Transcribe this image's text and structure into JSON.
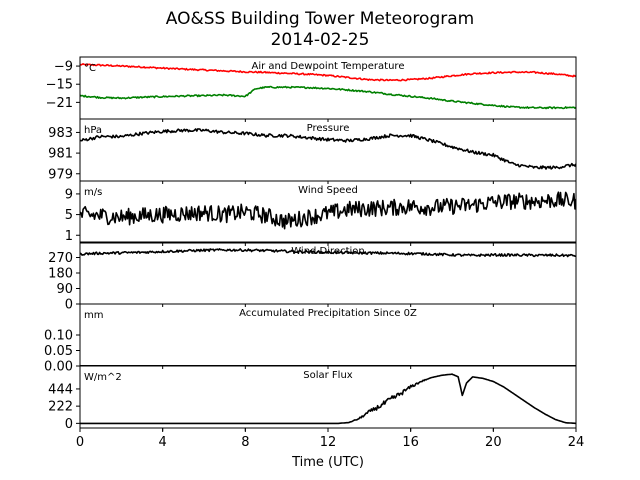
{
  "figure": {
    "title_line1": "AO&SS Building Tower Meteorogram",
    "title_line2": "2014-02-25",
    "xlabel": "Time (UTC)"
  },
  "chart_data": [
    {
      "type": "line",
      "title": "Air and Dewpoint Temperature",
      "unit": "°C",
      "xlim": [
        0,
        24
      ],
      "ylim": [
        -26.5,
        -6
      ],
      "yticks": [
        -9,
        -15,
        -21
      ],
      "yticklabels": [
        "−9",
        "−15",
        "−21"
      ],
      "noise": 0.25,
      "series": [
        {
          "color": "#ff0000",
          "x": [
            0,
            1,
            2,
            3,
            4,
            5,
            6,
            7,
            8,
            9,
            10,
            11,
            12,
            13,
            14,
            15,
            16,
            17,
            18,
            19,
            20,
            21,
            22,
            23,
            24
          ],
          "values": [
            -8.5,
            -8.7,
            -9.0,
            -9.3,
            -9.7,
            -10.0,
            -10.3,
            -10.6,
            -10.9,
            -11.1,
            -11.4,
            -11.7,
            -12.1,
            -12.8,
            -13.5,
            -13.7,
            -13.5,
            -13.0,
            -12.2,
            -11.5,
            -11.2,
            -11.0,
            -11.1,
            -11.6,
            -12.4
          ]
        },
        {
          "color": "#008000",
          "x": [
            0,
            1,
            2,
            3,
            4,
            5,
            6,
            7,
            8,
            8.5,
            9,
            10,
            11,
            12,
            13,
            14,
            15,
            16,
            17,
            18,
            19,
            20,
            21,
            22,
            23,
            24
          ],
          "values": [
            -18.8,
            -19.4,
            -19.6,
            -19.3,
            -19.1,
            -18.9,
            -18.8,
            -18.6,
            -19.0,
            -16.5,
            -16.0,
            -16.0,
            -16.1,
            -16.4,
            -16.9,
            -17.5,
            -18.3,
            -19.0,
            -19.7,
            -20.6,
            -21.3,
            -22.0,
            -22.6,
            -22.8,
            -22.8,
            -22.7
          ]
        }
      ]
    },
    {
      "type": "line",
      "title": "Pressure",
      "unit": "hPa",
      "xlim": [
        0,
        24
      ],
      "ylim": [
        978.3,
        984.3
      ],
      "yticks": [
        983,
        981,
        979
      ],
      "yticklabels": [
        "983",
        "981",
        "979"
      ],
      "noise": 0.15,
      "series": [
        {
          "color": "#000000",
          "x": [
            0,
            1,
            2,
            3,
            4,
            5,
            6,
            7,
            8,
            9,
            10,
            11,
            12,
            13,
            14,
            15,
            16,
            17,
            17.5,
            18,
            19,
            20,
            21,
            22,
            23,
            24
          ],
          "values": [
            982.2,
            982.6,
            982.6,
            982.9,
            983.1,
            983.2,
            983.2,
            983.0,
            982.9,
            982.7,
            982.7,
            982.5,
            982.3,
            982.2,
            982.4,
            982.7,
            982.7,
            982.2,
            981.9,
            981.6,
            981.1,
            980.8,
            979.9,
            979.6,
            979.6,
            979.9
          ]
        }
      ]
    },
    {
      "type": "line",
      "title": "Wind Speed",
      "unit": "m/s",
      "xlim": [
        0,
        24
      ],
      "ylim": [
        -0.5,
        11.5
      ],
      "yticks": [
        9,
        5,
        1
      ],
      "yticklabels": [
        "9",
        "5",
        "1"
      ],
      "noise": 1.6,
      "series": [
        {
          "color": "#000000",
          "x": [
            0,
            1,
            2,
            3,
            4,
            5,
            6,
            7,
            8,
            9,
            10,
            11,
            12,
            13,
            14,
            15,
            16,
            17,
            18,
            19,
            20,
            21,
            22,
            23,
            24
          ],
          "values": [
            5.0,
            4.8,
            4.5,
            4.8,
            5.0,
            5.2,
            5.4,
            5.0,
            5.5,
            4.8,
            3.6,
            4.5,
            5.2,
            6.0,
            6.2,
            6.3,
            6.6,
            6.4,
            6.6,
            6.8,
            7.4,
            7.6,
            7.6,
            7.8,
            7.6
          ]
        }
      ]
    },
    {
      "type": "line",
      "title": "Wind Direction",
      "unit": "",
      "xlim": [
        0,
        24
      ],
      "ylim": [
        0,
        360
      ],
      "yticks": [
        270,
        180,
        90,
        0
      ],
      "yticklabels": [
        "270",
        "180",
        "90",
        "0"
      ],
      "noise": 7,
      "series": [
        {
          "color": "#000000",
          "x": [
            0,
            1,
            2,
            3,
            4,
            5,
            6,
            7,
            8,
            9,
            10,
            11,
            12,
            13,
            14,
            15,
            16,
            17,
            18,
            19,
            20,
            21,
            22,
            23,
            24
          ],
          "values": [
            290,
            295,
            297,
            300,
            305,
            308,
            312,
            314,
            313,
            310,
            306,
            303,
            300,
            298,
            296,
            295,
            293,
            290,
            285,
            282,
            285,
            284,
            283,
            283,
            281
          ]
        }
      ]
    },
    {
      "type": "line",
      "title": "Accumulated Precipitation Since 0Z",
      "unit": "mm",
      "xlim": [
        0,
        24
      ],
      "ylim": [
        0,
        0.2
      ],
      "yticks": [
        0.1,
        0.05,
        0.0
      ],
      "yticklabels": [
        "0.10",
        "0.05",
        "0.00"
      ],
      "noise": 0,
      "series": [
        {
          "color": "#000000",
          "x": [
            0,
            24
          ],
          "values": [
            0,
            0
          ]
        }
      ]
    },
    {
      "type": "line",
      "title": "Solar Flux",
      "unit": "W/m^2",
      "xlim": [
        0,
        24
      ],
      "ylim": [
        -60,
        740
      ],
      "yticks": [
        444,
        222,
        0
      ],
      "yticklabels": [
        "444",
        "222",
        "0"
      ],
      "noise": 0,
      "series": [
        {
          "color": "#000000",
          "x": [
            0,
            12.5,
            13,
            13.5,
            14,
            14.5,
            15,
            15.5,
            16,
            16.5,
            17,
            17.5,
            18,
            18.3,
            18.5,
            18.7,
            19,
            19.5,
            20,
            20.5,
            21,
            21.5,
            22,
            22.5,
            23,
            23.5,
            24
          ],
          "values": [
            0,
            0,
            10,
            60,
            150,
            220,
            300,
            380,
            470,
            540,
            590,
            620,
            635,
            600,
            360,
            520,
            600,
            580,
            540,
            470,
            380,
            290,
            200,
            120,
            50,
            8,
            0
          ]
        }
      ]
    }
  ],
  "xaxis": {
    "ticks": [
      0,
      4,
      8,
      12,
      16,
      20,
      24
    ],
    "ticklabels": [
      "0",
      "4",
      "8",
      "12",
      "16",
      "20",
      "24"
    ]
  }
}
